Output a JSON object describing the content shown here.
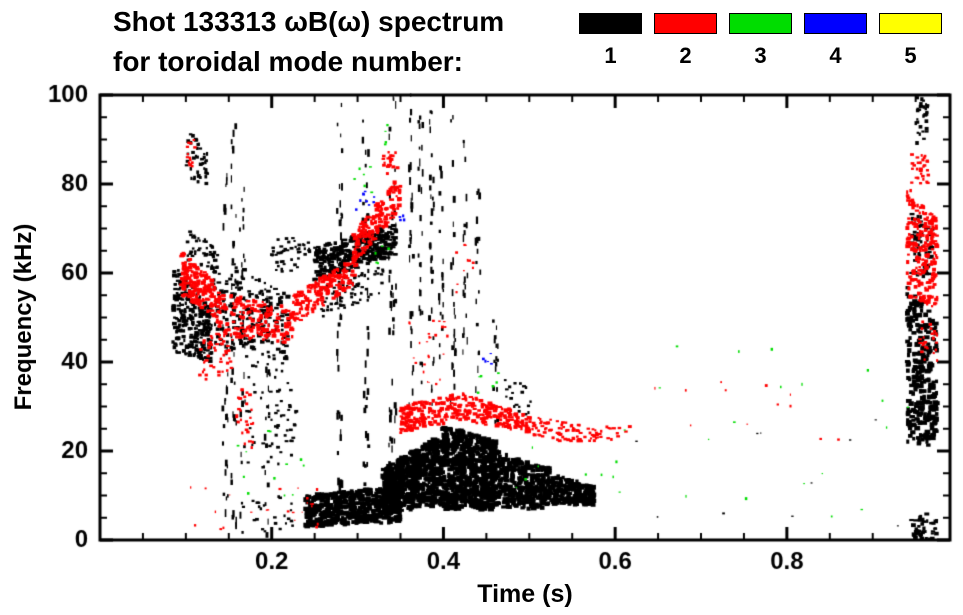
{
  "title": {
    "line1": "Shot 133313 ωB(ω) spectrum",
    "line2": "for toroidal mode number:"
  },
  "legend": {
    "entries": [
      {
        "label": "1",
        "color": "#000000"
      },
      {
        "label": "2",
        "color": "#ff0000"
      },
      {
        "label": "3",
        "color": "#00dd00"
      },
      {
        "label": "4",
        "color": "#0000ff"
      },
      {
        "label": "5",
        "color": "#ffff00"
      }
    ]
  },
  "chart_data": {
    "type": "scatter",
    "title": "Shot 133313 ωB(ω) spectrum for toroidal mode number: 1 2 3 4 5",
    "xlabel": "Time (s)",
    "ylabel": "Frequency (kHz)",
    "xlim": [
      0,
      0.99
    ],
    "ylim": [
      0,
      100
    ],
    "x_ticks": [
      0.2,
      0.4,
      0.6,
      0.8
    ],
    "x_tick_labels": [
      "0.2",
      "0.4",
      "0.6",
      "0.8"
    ],
    "x_minor_step": 0.05,
    "y_ticks": [
      0,
      20,
      40,
      60,
      80,
      100
    ],
    "y_tick_labels": [
      "0",
      "20",
      "40",
      "60",
      "80",
      "100"
    ],
    "y_minor_step": 5,
    "grid": false,
    "legend_position": "top-right",
    "cluster_format": "[t0,t1,fLow_at_t0,fLow_at_t1,fHigh_at_t0,fHigh_at_t1,count,wMin,wMax,hMin,hMax] — scatter blob: points uniformly fill the band between fLow(t) and fHigh(t) over [t0,t1]",
    "series": [
      {
        "name": "n=1",
        "color": "#000000",
        "clusters": [
          [
            0.085,
            0.13,
            42,
            40,
            62,
            52,
            260,
            2,
            5,
            2,
            4
          ],
          [
            0.1,
            0.125,
            78,
            80,
            93,
            88,
            40,
            2,
            4,
            2,
            4
          ],
          [
            0.1,
            0.135,
            62,
            60,
            70,
            66,
            40,
            2,
            4,
            2,
            3
          ],
          [
            0.13,
            0.22,
            44,
            40,
            65,
            55,
            200,
            2,
            5,
            2,
            4
          ],
          [
            0.143,
            0.149,
            5,
            5,
            88,
            88,
            30,
            1,
            3,
            3,
            8
          ],
          [
            0.153,
            0.159,
            2,
            2,
            95,
            95,
            35,
            1,
            3,
            3,
            8
          ],
          [
            0.163,
            0.169,
            5,
            5,
            80,
            80,
            25,
            1,
            3,
            3,
            8
          ],
          [
            0.165,
            0.225,
            1,
            1,
            10,
            10,
            25,
            2,
            4,
            2,
            3
          ],
          [
            0.17,
            0.23,
            15,
            18,
            45,
            40,
            70,
            2,
            4,
            2,
            3
          ],
          [
            0.192,
            0.198,
            0,
            0,
            55,
            55,
            25,
            1,
            3,
            3,
            7
          ],
          [
            0.2,
            0.245,
            60,
            61,
            68,
            68,
            45,
            2,
            4,
            2,
            3
          ],
          [
            0.24,
            0.35,
            3,
            4,
            10,
            12,
            420,
            3,
            7,
            3,
            5
          ],
          [
            0.25,
            0.345,
            58,
            64,
            66,
            71,
            320,
            3,
            6,
            2,
            4
          ],
          [
            0.258,
            0.33,
            50,
            55,
            58,
            62,
            70,
            2,
            4,
            2,
            3
          ],
          [
            0.276,
            0.282,
            5,
            5,
            100,
            100,
            40,
            1,
            3,
            3,
            8
          ],
          [
            0.306,
            0.313,
            5,
            5,
            100,
            100,
            40,
            1,
            3,
            3,
            8
          ],
          [
            0.336,
            0.345,
            10,
            10,
            100,
            100,
            45,
            1,
            3,
            3,
            8
          ],
          [
            0.33,
            0.4,
            6,
            8,
            16,
            24,
            520,
            3,
            7,
            3,
            6
          ],
          [
            0.4,
            0.46,
            7,
            7,
            26,
            22,
            520,
            3,
            7,
            3,
            6
          ],
          [
            0.46,
            0.525,
            7,
            7,
            20,
            16,
            330,
            3,
            6,
            3,
            5
          ],
          [
            0.525,
            0.575,
            8,
            8,
            15,
            12,
            180,
            3,
            6,
            3,
            5
          ],
          [
            0.36,
            0.365,
            30,
            30,
            100,
            100,
            30,
            1,
            3,
            3,
            8
          ],
          [
            0.371,
            0.376,
            35,
            35,
            95,
            95,
            25,
            1,
            3,
            3,
            8
          ],
          [
            0.383,
            0.389,
            30,
            30,
            100,
            100,
            30,
            1,
            3,
            3,
            8
          ],
          [
            0.395,
            0.4,
            40,
            40,
            90,
            90,
            20,
            1,
            3,
            3,
            8
          ],
          [
            0.408,
            0.414,
            30,
            30,
            95,
            95,
            25,
            1,
            3,
            3,
            8
          ],
          [
            0.422,
            0.428,
            35,
            35,
            90,
            90,
            20,
            1,
            3,
            3,
            8
          ],
          [
            0.437,
            0.443,
            30,
            30,
            85,
            85,
            18,
            1,
            3,
            3,
            8
          ],
          [
            0.458,
            0.464,
            25,
            25,
            50,
            50,
            15,
            1,
            3,
            3,
            6
          ],
          [
            0.47,
            0.505,
            28,
            28,
            38,
            33,
            20,
            2,
            4,
            2,
            3
          ],
          [
            0.6,
            0.93,
            3,
            3,
            28,
            28,
            10,
            1,
            3,
            1,
            2
          ],
          [
            0.94,
            0.975,
            22,
            20,
            58,
            50,
            280,
            3,
            6,
            3,
            5
          ],
          [
            0.945,
            0.97,
            60,
            58,
            75,
            70,
            60,
            2,
            5,
            2,
            4
          ],
          [
            0.95,
            0.965,
            88,
            90,
            100,
            100,
            30,
            2,
            4,
            2,
            4
          ],
          [
            0.945,
            0.975,
            0,
            0,
            6,
            6,
            40,
            2,
            5,
            2,
            4
          ]
        ]
      },
      {
        "name": "n=2",
        "color": "#ff0000",
        "clusters": [
          [
            0.095,
            0.135,
            55,
            50,
            65,
            58,
            170,
            2,
            5,
            2,
            4
          ],
          [
            0.1,
            0.112,
            84,
            84,
            90,
            90,
            15,
            2,
            4,
            2,
            3
          ],
          [
            0.115,
            0.155,
            35,
            38,
            46,
            46,
            45,
            2,
            4,
            2,
            3
          ],
          [
            0.135,
            0.225,
            46,
            44,
            56,
            52,
            190,
            2,
            5,
            2,
            4
          ],
          [
            0.158,
            0.182,
            20,
            20,
            34,
            34,
            28,
            2,
            4,
            2,
            3
          ],
          [
            0.225,
            0.3,
            48,
            58,
            55,
            64,
            170,
            2,
            5,
            2,
            4
          ],
          [
            0.295,
            0.35,
            62,
            74,
            69,
            82,
            170,
            2,
            5,
            2,
            4
          ],
          [
            0.33,
            0.347,
            82,
            83,
            87,
            88,
            22,
            2,
            4,
            2,
            3
          ],
          [
            0.35,
            0.42,
            24,
            27,
            30,
            33,
            170,
            2,
            5,
            2,
            4
          ],
          [
            0.42,
            0.5,
            27,
            24,
            33,
            28,
            150,
            2,
            5,
            2,
            4
          ],
          [
            0.5,
            0.58,
            23,
            21,
            28,
            25,
            90,
            2,
            4,
            2,
            3
          ],
          [
            0.58,
            0.625,
            22,
            23,
            25,
            27,
            14,
            2,
            4,
            2,
            3
          ],
          [
            0.63,
            0.905,
            22,
            22,
            36,
            36,
            12,
            1,
            3,
            1,
            3
          ],
          [
            0.36,
            0.405,
            35,
            35,
            55,
            50,
            25,
            1,
            3,
            1,
            3
          ],
          [
            0.415,
            0.45,
            55,
            55,
            68,
            64,
            10,
            1,
            3,
            1,
            3
          ],
          [
            0.1,
            0.26,
            2,
            2,
            12,
            12,
            25,
            1,
            3,
            1,
            3
          ],
          [
            0.94,
            0.975,
            55,
            52,
            80,
            72,
            220,
            2,
            5,
            2,
            4
          ],
          [
            0.945,
            0.965,
            80,
            80,
            88,
            86,
            30,
            2,
            4,
            2,
            3
          ],
          [
            0.955,
            0.975,
            40,
            40,
            50,
            48,
            25,
            2,
            4,
            2,
            3
          ]
        ]
      },
      {
        "name": "n=3",
        "color": "#00dd00",
        "clusters": [
          [
            0.16,
            0.245,
            8,
            8,
            30,
            30,
            12,
            1,
            3,
            1,
            3
          ],
          [
            0.295,
            0.318,
            78,
            78,
            84,
            84,
            6,
            2,
            3,
            1,
            3
          ],
          [
            0.32,
            0.34,
            60,
            60,
            67,
            67,
            5,
            2,
            3,
            1,
            3
          ],
          [
            0.328,
            0.34,
            88,
            90,
            93,
            95,
            4,
            2,
            3,
            1,
            3
          ],
          [
            0.44,
            0.47,
            33,
            33,
            38,
            38,
            6,
            2,
            3,
            1,
            3
          ],
          [
            0.48,
            0.625,
            10,
            10,
            25,
            25,
            10,
            1,
            3,
            1,
            3
          ],
          [
            0.65,
            0.95,
            5,
            5,
            45,
            45,
            18,
            1,
            3,
            1,
            3
          ]
        ]
      },
      {
        "name": "n=4",
        "color": "#0000ff",
        "clusters": [
          [
            0.295,
            0.325,
            74,
            76,
            79,
            80,
            9,
            2,
            3,
            1,
            3
          ],
          [
            0.345,
            0.357,
            70,
            70,
            74,
            74,
            4,
            2,
            3,
            1,
            3
          ],
          [
            0.445,
            0.457,
            39,
            39,
            43,
            43,
            5,
            2,
            3,
            1,
            3
          ]
        ]
      },
      {
        "name": "n=5",
        "color": "#ffff00",
        "clusters": []
      }
    ]
  }
}
